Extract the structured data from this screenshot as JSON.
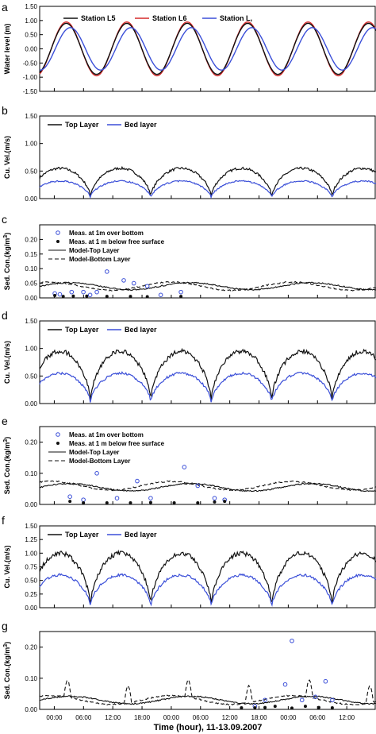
{
  "colors": {
    "black": "#111111",
    "red": "#d62a2a",
    "blue": "#3b4fd8"
  },
  "panels": [
    {
      "letter": "a",
      "ylabel": "Water level (m)",
      "yticks": [
        "1.50",
        "1.00",
        "0.50",
        "0.00",
        "-0.50",
        "-1.00",
        "-1.50"
      ],
      "ylim": [
        -1.5,
        1.5
      ],
      "legend": [
        "Station L5",
        "Station L6",
        "Station L,"
      ]
    },
    {
      "letter": "b",
      "ylabel": "Cu. Vel.(m/s)",
      "yticks": [
        "1.50",
        "1.00",
        "0.50",
        "0.00"
      ],
      "ylim": [
        0,
        1.5
      ],
      "legend": [
        "Top Layer",
        "Bed layer"
      ]
    },
    {
      "letter": "c",
      "ylabel": "Sed. Con.(kg/m",
      "ylabel_sup": "3",
      "ylabel_end": ")",
      "yticks": [
        "0.20",
        "0.15",
        "0.10",
        "0.05",
        "0.00"
      ],
      "ylim": [
        0,
        0.25
      ],
      "legend": [
        "Meas. at 1m over bottom",
        "Meas. at 1 m below free surface",
        "Model-Top Layer",
        "Model-Bottom Layer"
      ]
    },
    {
      "letter": "d",
      "ylabel": "Cu. Vel.(m/s)",
      "yticks": [
        "1.50",
        "1.00",
        "0.50",
        "0.00"
      ],
      "ylim": [
        0,
        1.5
      ],
      "legend": [
        "Top Layer",
        "Bed layer"
      ]
    },
    {
      "letter": "e",
      "ylabel": "Sed. Con.(kg/m",
      "ylabel_sup": "3",
      "ylabel_end": ")",
      "yticks": [
        "0.20",
        "0.10",
        "0.00"
      ],
      "ylim": [
        0,
        0.25
      ],
      "legend": [
        "Meas. at 1m over bottom",
        "Meas. at 1 m below free surface",
        "Model-Top Layer",
        "Model-Bottom Layer"
      ]
    },
    {
      "letter": "f",
      "ylabel": "Cu. Vel.(m/s)",
      "yticks": [
        "1.50",
        "1.25",
        "1.00",
        "0.75",
        "0.50",
        "0.25",
        "0.00"
      ],
      "ylim": [
        0,
        1.5
      ],
      "legend": [
        "Top Layer",
        "Bed layer"
      ]
    },
    {
      "letter": "g",
      "ylabel": "Sed. Con.(kg/m",
      "ylabel_sup": "3",
      "ylabel_end": ")",
      "yticks": [
        "0.20",
        "0.10",
        "0.00"
      ],
      "ylim": [
        0,
        0.25
      ],
      "legend": []
    }
  ],
  "chart_data": {
    "type": "line",
    "x_axis": {
      "label": "Time (hour), 11-13.09.2007",
      "tick_labels": [
        "00:00",
        "06:00",
        "12:00",
        "18:00",
        "00:00",
        "06:00",
        "12:00",
        "18:00",
        "00:00",
        "06:00",
        "12:00"
      ],
      "range_hours": [
        -3,
        66
      ]
    },
    "a": {
      "series": [
        {
          "name": "Station L5",
          "amplitude": 0.9
        },
        {
          "name": "Station L6",
          "amplitude": 0.95
        },
        {
          "name": "Station L,",
          "amplitude": 0.75
        }
      ],
      "period_hours": 12.4
    },
    "b": {
      "series": [
        {
          "name": "Top Layer",
          "peak": 0.55,
          "base": 0.1
        },
        {
          "name": "Bed layer",
          "peak": 0.32,
          "base": 0.05
        }
      ]
    },
    "c": {
      "model_top_mean": 0.04,
      "model_bottom_mean": 0.04,
      "meas_bottom": [
        [
          0.045,
          0.015
        ],
        [
          0.06,
          0.012
        ],
        [
          0.095,
          0.02
        ],
        [
          0.13,
          0.02
        ],
        [
          0.15,
          0.01
        ],
        [
          0.17,
          0.02
        ],
        [
          0.2,
          0.09
        ],
        [
          0.25,
          0.06
        ],
        [
          0.28,
          0.05
        ],
        [
          0.32,
          0.04
        ],
        [
          0.36,
          0.01
        ],
        [
          0.42,
          0.02
        ]
      ],
      "meas_top": [
        [
          0.045,
          0.008
        ],
        [
          0.07,
          0.005
        ],
        [
          0.1,
          0.006
        ],
        [
          0.14,
          0.006
        ],
        [
          0.2,
          0.005
        ],
        [
          0.27,
          0.005
        ],
        [
          0.32,
          0.004
        ],
        [
          0.42,
          0.005
        ]
      ]
    },
    "d": {
      "series": [
        {
          "name": "Top Layer",
          "peak": 0.95,
          "base": 0.1
        },
        {
          "name": "Bed layer",
          "peak": 0.55,
          "base": 0.05
        }
      ]
    },
    "e": {
      "model_top_mean": 0.055,
      "model_bottom_mean": 0.06,
      "meas_bottom": [
        [
          0.09,
          0.025
        ],
        [
          0.13,
          0.015
        ],
        [
          0.17,
          0.1
        ],
        [
          0.23,
          0.02
        ],
        [
          0.29,
          0.075
        ],
        [
          0.33,
          0.02
        ],
        [
          0.43,
          0.12
        ],
        [
          0.47,
          0.06
        ],
        [
          0.52,
          0.02
        ],
        [
          0.55,
          0.015
        ]
      ],
      "meas_top": [
        [
          0.09,
          0.01
        ],
        [
          0.13,
          0.005
        ],
        [
          0.2,
          0.005
        ],
        [
          0.27,
          0.005
        ],
        [
          0.33,
          0.006
        ],
        [
          0.4,
          0.005
        ],
        [
          0.47,
          0.005
        ],
        [
          0.52,
          0.008
        ],
        [
          0.55,
          0.01
        ]
      ]
    },
    "f": {
      "series": [
        {
          "name": "Top Layer",
          "peak": 1.0,
          "base": 0.05
        },
        {
          "name": "Bed layer",
          "peak": 0.6,
          "base": 0.03
        }
      ]
    },
    "g": {
      "model_top_mean": 0.03,
      "model_bottom_mean": 0.03,
      "meas_bottom": [
        [
          0.64,
          0.01
        ],
        [
          0.67,
          0.03
        ],
        [
          0.73,
          0.08
        ],
        [
          0.75,
          0.22
        ],
        [
          0.78,
          0.03
        ],
        [
          0.82,
          0.04
        ],
        [
          0.85,
          0.09
        ],
        [
          0.87,
          0.03
        ]
      ],
      "meas_top": [
        [
          0.6,
          0.005
        ],
        [
          0.64,
          0.005
        ],
        [
          0.67,
          0.006
        ],
        [
          0.7,
          0.01
        ],
        [
          0.75,
          0.004
        ],
        [
          0.79,
          0.01
        ],
        [
          0.83,
          0.006
        ],
        [
          0.87,
          0.005
        ]
      ]
    }
  }
}
